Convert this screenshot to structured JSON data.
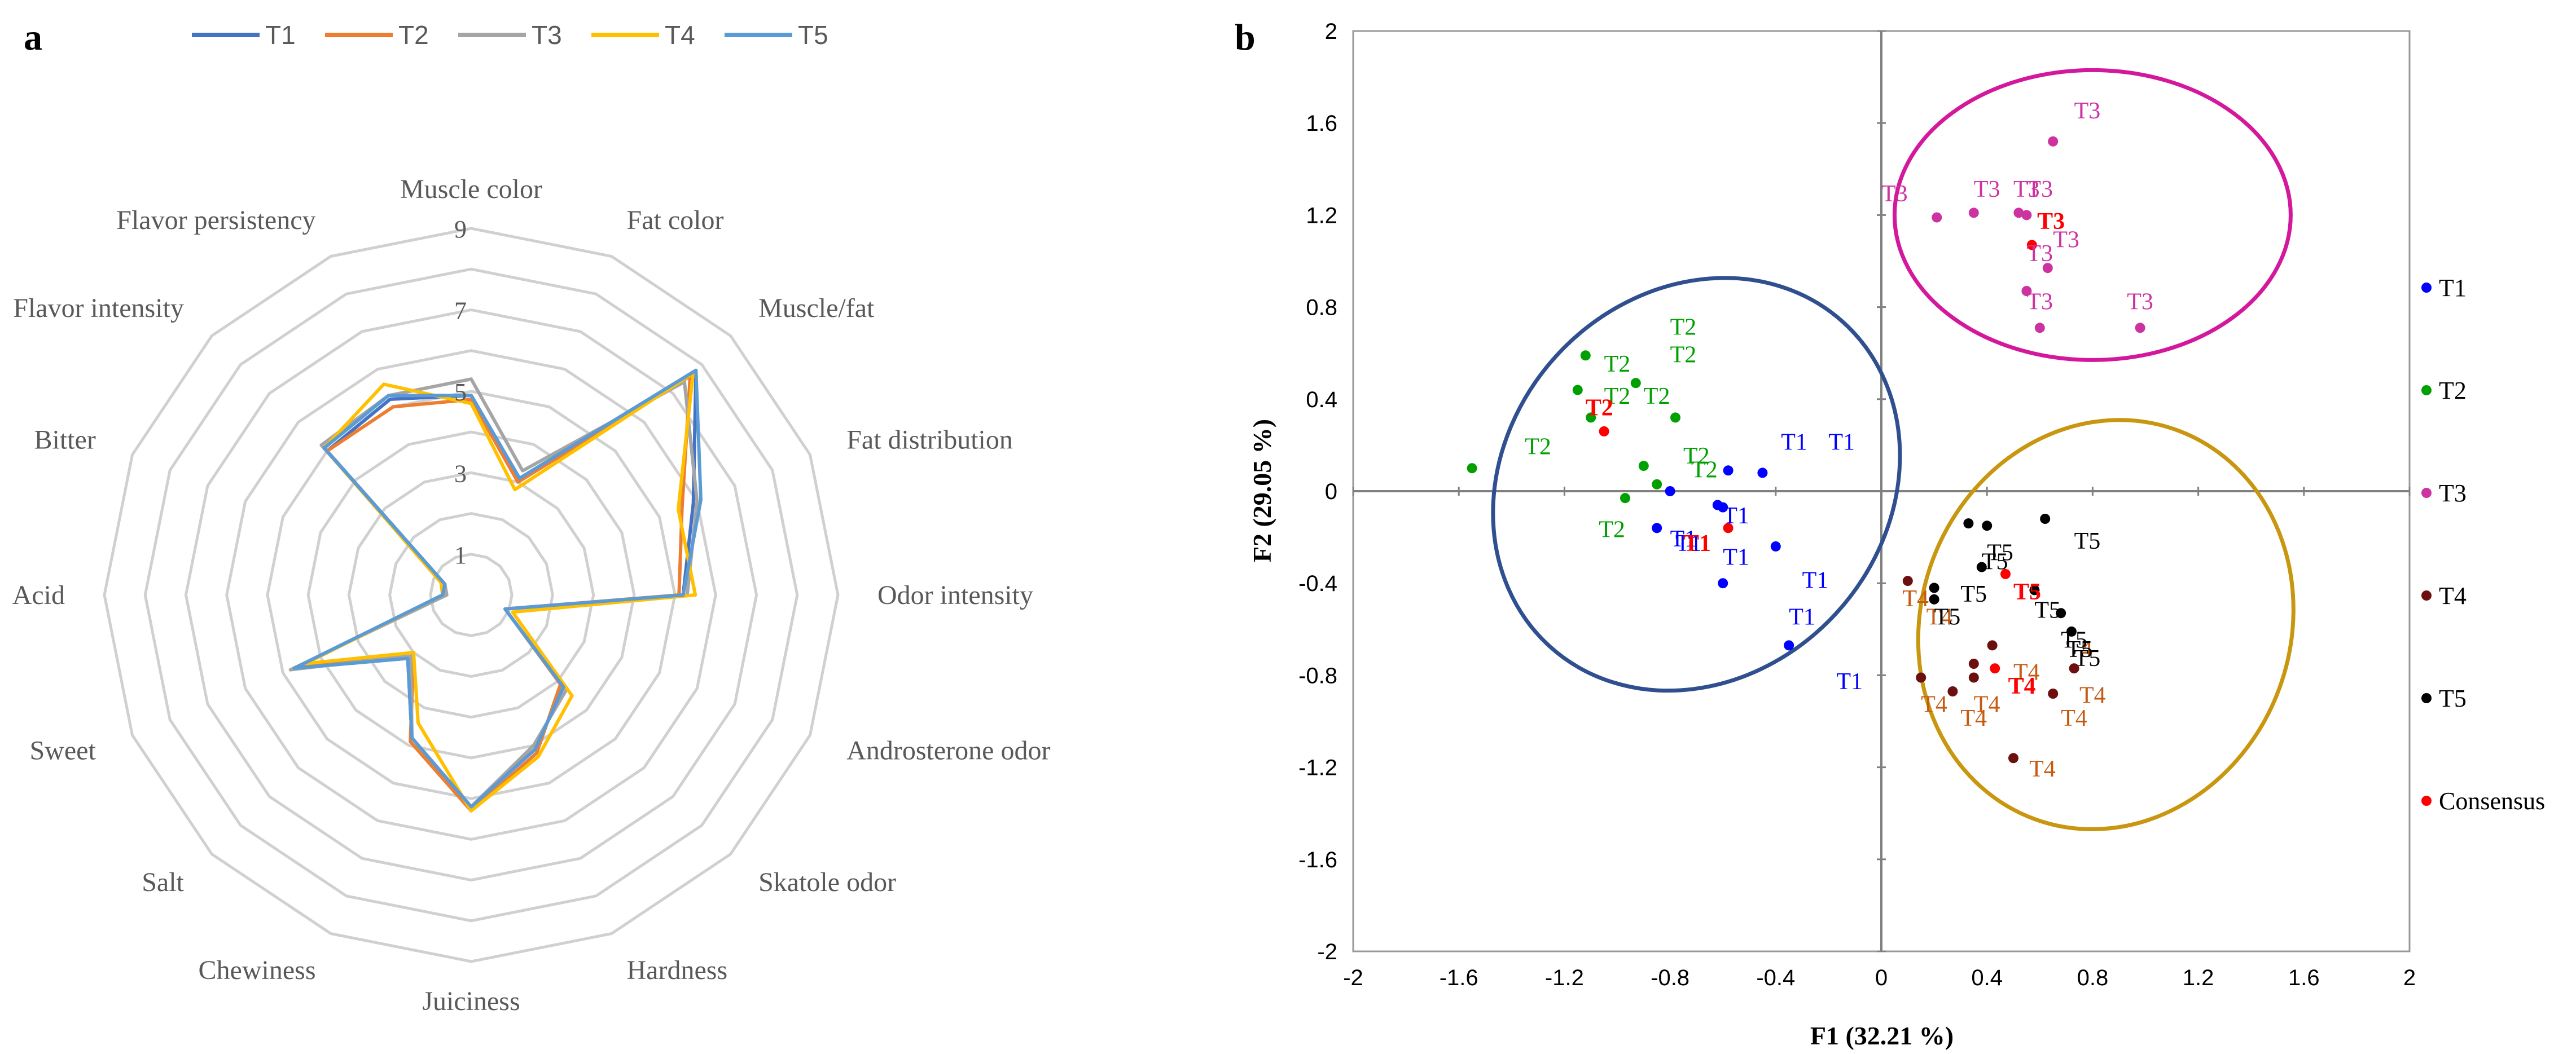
{
  "chart_data": [
    {
      "panel_label": "a",
      "type": "radar",
      "scale_ticks": [
        "1",
        "3",
        "5",
        "7",
        "9"
      ],
      "scale_values": [
        1,
        3,
        5,
        7,
        9
      ],
      "rmin": 0,
      "rmax": 9,
      "axes": [
        "Muscle color",
        "Fat color",
        "Muscle/fat",
        "Fat distribution",
        "Odor intensity",
        "Androsterone odor",
        "Skatole odor",
        "Hardness",
        "Juiciness",
        "Chewiness",
        "Salt",
        "Sweet",
        "Acid",
        "Bitter",
        "Flavor intensity",
        "Flavor persistency"
      ],
      "legend": [
        "T1",
        "T2",
        "T3",
        "T4",
        "T5"
      ],
      "series": [
        {
          "name": "T1",
          "color": "#4472C4",
          "values": [
            4.9,
            3.1,
            7.8,
            5.9,
            5.2,
            0.9,
            3.2,
            4.1,
            5.2,
            3.8,
            2.2,
            4.7,
            0.7,
            0.7,
            5.0,
            5.2
          ]
        },
        {
          "name": "T2",
          "color": "#ED7D31",
          "values": [
            4.8,
            3.0,
            7.6,
            5.6,
            5.1,
            0.9,
            3.1,
            4.2,
            5.3,
            3.9,
            2.0,
            4.6,
            0.7,
            0.8,
            5.0,
            5.0
          ]
        },
        {
          "name": "T3",
          "color": "#A5A5A5",
          "values": [
            5.3,
            3.3,
            7.4,
            6.0,
            5.3,
            0.9,
            3.3,
            4.0,
            5.2,
            3.8,
            2.1,
            4.8,
            0.6,
            0.7,
            5.2,
            5.3
          ]
        },
        {
          "name": "T4",
          "color": "#FFC000",
          "values": [
            4.7,
            2.8,
            7.7,
            5.5,
            5.5,
            1.1,
            3.5,
            4.3,
            5.3,
            3.4,
            2.0,
            4.4,
            0.7,
            0.8,
            5.1,
            5.6
          ]
        },
        {
          "name": "T5",
          "color": "#5B9BD5",
          "values": [
            4.9,
            3.1,
            7.8,
            6.1,
            5.2,
            0.9,
            3.2,
            4.1,
            5.2,
            3.8,
            2.2,
            4.7,
            0.7,
            0.7,
            5.1,
            5.3
          ]
        }
      ]
    },
    {
      "panel_label": "b",
      "type": "scatter",
      "xlabel": "F1 (32.21 %)",
      "ylabel": "F2 (29.05 %)",
      "xlim": [
        -2,
        2
      ],
      "ylim": [
        -2,
        2
      ],
      "x_ticks": [
        "-2",
        "-1.6",
        "-1.2",
        "-0.8",
        "-0.4",
        "0",
        "0.4",
        "0.8",
        "1.2",
        "1.6",
        "2"
      ],
      "x_tick_values": [
        -2,
        -1.6,
        -1.2,
        -0.8,
        -0.4,
        0,
        0.4,
        0.8,
        1.2,
        1.6,
        2
      ],
      "y_ticks": [
        "-2",
        "-1.6",
        "-1.2",
        "-0.8",
        "-0.4",
        "0",
        "0.4",
        "0.8",
        "1.2",
        "1.6",
        "2"
      ],
      "y_tick_values": [
        -2,
        -1.6,
        -1.2,
        -0.8,
        -0.4,
        0,
        0.4,
        0.8,
        1.2,
        1.6,
        2
      ],
      "legend": [
        {
          "name": "T1",
          "color": "#0000FF"
        },
        {
          "name": "T2",
          "color": "#00A000"
        },
        {
          "name": "T3",
          "color": "#CC33A0"
        },
        {
          "name": "T4",
          "color": "#6B0F0F"
        },
        {
          "name": "T5",
          "color": "#000000"
        },
        {
          "name": "Consensus",
          "color": "#FF0000"
        }
      ],
      "ellipses": [
        {
          "group": "T1",
          "color": "#2F4F8F",
          "cx": -0.7,
          "cy": 0.03,
          "rx": 0.72,
          "ry": 0.95,
          "angle_deg": 42
        },
        {
          "group": "T3",
          "color": "#D4189C",
          "cx": 0.8,
          "cy": 1.2,
          "rx": 0.75,
          "ry": 0.63,
          "angle_deg": 0
        },
        {
          "group": "T5",
          "color": "#C8960F",
          "cx": 0.85,
          "cy": -0.58,
          "rx": 0.7,
          "ry": 0.9,
          "angle_deg": 20
        }
      ],
      "points": [
        {
          "x": -0.8,
          "y": 0.0,
          "group": "T1"
        },
        {
          "x": -0.58,
          "y": 0.09,
          "group": "T1"
        },
        {
          "x": -0.45,
          "y": 0.08,
          "group": "T1"
        },
        {
          "x": -0.85,
          "y": -0.16,
          "group": "T1"
        },
        {
          "x": -0.62,
          "y": -0.06,
          "group": "T1"
        },
        {
          "x": -0.6,
          "y": -0.07,
          "group": "T1"
        },
        {
          "x": -0.4,
          "y": -0.24,
          "group": "T1"
        },
        {
          "x": -0.6,
          "y": -0.4,
          "group": "T1"
        },
        {
          "x": -0.35,
          "y": -0.67,
          "group": "T1"
        },
        {
          "x": -1.12,
          "y": 0.59,
          "group": "T2"
        },
        {
          "x": -0.93,
          "y": 0.47,
          "group": "T2"
        },
        {
          "x": -1.15,
          "y": 0.44,
          "group": "T2"
        },
        {
          "x": -1.1,
          "y": 0.32,
          "group": "T2"
        },
        {
          "x": -0.78,
          "y": 0.32,
          "group": "T2"
        },
        {
          "x": -0.9,
          "y": 0.11,
          "group": "T2"
        },
        {
          "x": -0.85,
          "y": 0.03,
          "group": "T2"
        },
        {
          "x": -0.97,
          "y": -0.03,
          "group": "T2"
        },
        {
          "x": -1.55,
          "y": 0.1,
          "group": "T2"
        },
        {
          "x": 0.65,
          "y": 1.52,
          "group": "T3"
        },
        {
          "x": 0.21,
          "y": 1.19,
          "group": "T3"
        },
        {
          "x": 0.35,
          "y": 1.21,
          "group": "T3"
        },
        {
          "x": 0.52,
          "y": 1.21,
          "group": "T3"
        },
        {
          "x": 0.55,
          "y": 1.2,
          "group": "T3"
        },
        {
          "x": 0.63,
          "y": 0.97,
          "group": "T3"
        },
        {
          "x": 0.55,
          "y": 0.87,
          "group": "T3"
        },
        {
          "x": 0.6,
          "y": 0.71,
          "group": "T3"
        },
        {
          "x": 0.98,
          "y": 0.71,
          "group": "T3"
        },
        {
          "x": 0.1,
          "y": -0.39,
          "group": "T4"
        },
        {
          "x": 0.35,
          "y": -0.75,
          "group": "T4"
        },
        {
          "x": 0.15,
          "y": -0.81,
          "group": "T4"
        },
        {
          "x": 0.27,
          "y": -0.87,
          "group": "T4"
        },
        {
          "x": 0.42,
          "y": -0.67,
          "group": "T4"
        },
        {
          "x": 0.35,
          "y": -0.81,
          "group": "T4"
        },
        {
          "x": 0.5,
          "y": -1.16,
          "group": "T4"
        },
        {
          "x": 0.73,
          "y": -0.77,
          "group": "T4"
        },
        {
          "x": 0.65,
          "y": -0.88,
          "group": "T4"
        },
        {
          "x": 0.62,
          "y": -0.12,
          "group": "T5"
        },
        {
          "x": 0.33,
          "y": -0.14,
          "group": "T5"
        },
        {
          "x": 0.4,
          "y": -0.15,
          "group": "T5"
        },
        {
          "x": 0.38,
          "y": -0.33,
          "group": "T5"
        },
        {
          "x": 0.2,
          "y": -0.42,
          "group": "T5"
        },
        {
          "x": 0.2,
          "y": -0.47,
          "group": "T5"
        },
        {
          "x": 0.58,
          "y": -0.43,
          "group": "T5"
        },
        {
          "x": 0.68,
          "y": -0.53,
          "group": "T5"
        },
        {
          "x": 0.72,
          "y": -0.61,
          "group": "T5"
        },
        {
          "x": -0.58,
          "y": -0.16,
          "group": "Consensus"
        },
        {
          "x": -1.05,
          "y": 0.26,
          "group": "Consensus"
        },
        {
          "x": 0.57,
          "y": 1.07,
          "group": "Consensus"
        },
        {
          "x": 0.43,
          "y": -0.77,
          "group": "Consensus"
        },
        {
          "x": 0.47,
          "y": -0.36,
          "group": "Consensus"
        }
      ],
      "point_labels": [
        {
          "x": -0.38,
          "y": 0.18,
          "text": "T1",
          "group": "T1"
        },
        {
          "x": -0.2,
          "y": 0.18,
          "text": "T1",
          "group": "T1"
        },
        {
          "x": -0.6,
          "y": -0.14,
          "text": "T1",
          "group": "T1"
        },
        {
          "x": -0.8,
          "y": -0.24,
          "text": "T1",
          "group": "T1"
        },
        {
          "x": -0.78,
          "y": -0.26,
          "text": "T1",
          "group": "T1"
        },
        {
          "x": -0.6,
          "y": -0.32,
          "text": "T1",
          "group": "T1"
        },
        {
          "x": -0.3,
          "y": -0.42,
          "text": "T1",
          "group": "T1"
        },
        {
          "x": -0.35,
          "y": -0.58,
          "text": "T1",
          "group": "T1"
        },
        {
          "x": -0.17,
          "y": -0.86,
          "text": "T1",
          "group": "T1"
        },
        {
          "x": -0.8,
          "y": 0.68,
          "text": "T2",
          "group": "T2"
        },
        {
          "x": -1.05,
          "y": 0.52,
          "text": "T2",
          "group": "T2"
        },
        {
          "x": -0.8,
          "y": 0.56,
          "text": "T2",
          "group": "T2"
        },
        {
          "x": -1.05,
          "y": 0.38,
          "text": "T2",
          "group": "T2"
        },
        {
          "x": -0.9,
          "y": 0.38,
          "text": "T2",
          "group": "T2"
        },
        {
          "x": -0.75,
          "y": 0.12,
          "text": "T2",
          "group": "T2"
        },
        {
          "x": -0.72,
          "y": 0.06,
          "text": "T2",
          "group": "T2"
        },
        {
          "x": -1.35,
          "y": 0.16,
          "text": "T2",
          "group": "T2"
        },
        {
          "x": -1.07,
          "y": -0.2,
          "text": "T2",
          "group": "T2"
        },
        {
          "x": 0.73,
          "y": 1.62,
          "text": "T3",
          "group": "T3"
        },
        {
          "x": 0.0,
          "y": 1.26,
          "text": "T3",
          "group": "T3"
        },
        {
          "x": 0.35,
          "y": 1.28,
          "text": "T3",
          "group": "T3"
        },
        {
          "x": 0.5,
          "y": 1.28,
          "text": "T3",
          "group": "T3"
        },
        {
          "x": 0.55,
          "y": 1.28,
          "text": "T3",
          "group": "T3"
        },
        {
          "x": 0.65,
          "y": 1.06,
          "text": "T3",
          "group": "T3"
        },
        {
          "x": 0.55,
          "y": 1.0,
          "text": "T3",
          "group": "T3"
        },
        {
          "x": 0.55,
          "y": 0.79,
          "text": "T3",
          "group": "T3"
        },
        {
          "x": 0.93,
          "y": 0.79,
          "text": "T3",
          "group": "T3"
        },
        {
          "x": 0.08,
          "y": -0.5,
          "text": "T4",
          "group": "T4"
        },
        {
          "x": 0.17,
          "y": -0.58,
          "text": "T4",
          "group": "T4"
        },
        {
          "x": 0.5,
          "y": -0.82,
          "text": "T4",
          "group": "T4"
        },
        {
          "x": 0.15,
          "y": -0.96,
          "text": "T4",
          "group": "T4"
        },
        {
          "x": 0.35,
          "y": -0.96,
          "text": "T4",
          "group": "T4"
        },
        {
          "x": 0.3,
          "y": -1.02,
          "text": "T4",
          "group": "T4"
        },
        {
          "x": 0.7,
          "y": -0.72,
          "text": "T4",
          "group": "T4"
        },
        {
          "x": 0.75,
          "y": -0.92,
          "text": "T4",
          "group": "T4"
        },
        {
          "x": 0.68,
          "y": -1.02,
          "text": "T4",
          "group": "T4"
        },
        {
          "x": 0.56,
          "y": -1.24,
          "text": "T4",
          "group": "T4"
        },
        {
          "x": 0.73,
          "y": -0.25,
          "text": "T5",
          "group": "T5"
        },
        {
          "x": 0.4,
          "y": -0.3,
          "text": "T5",
          "group": "T5"
        },
        {
          "x": 0.38,
          "y": -0.34,
          "text": "T5",
          "group": "T5"
        },
        {
          "x": 0.3,
          "y": -0.48,
          "text": "T5",
          "group": "T5"
        },
        {
          "x": 0.2,
          "y": -0.58,
          "text": "T5",
          "group": "T5"
        },
        {
          "x": 0.58,
          "y": -0.55,
          "text": "T5",
          "group": "T5"
        },
        {
          "x": 0.68,
          "y": -0.68,
          "text": "T5",
          "group": "T5"
        },
        {
          "x": 0.7,
          "y": -0.72,
          "text": "T5",
          "group": "T5"
        },
        {
          "x": 0.73,
          "y": -0.76,
          "text": "T5",
          "group": "T5"
        },
        {
          "x": -1.12,
          "y": 0.33,
          "text": "T2",
          "group": "Consensus",
          "bold": true
        },
        {
          "x": -0.75,
          "y": -0.26,
          "text": "T1",
          "group": "Consensus",
          "bold": true
        },
        {
          "x": 0.59,
          "y": 1.14,
          "text": "T3",
          "group": "Consensus",
          "bold": true
        },
        {
          "x": 0.5,
          "y": -0.47,
          "text": "T5",
          "group": "Consensus",
          "bold": true
        },
        {
          "x": 0.48,
          "y": -0.88,
          "text": "T4",
          "group": "Consensus",
          "bold": true
        }
      ]
    }
  ]
}
